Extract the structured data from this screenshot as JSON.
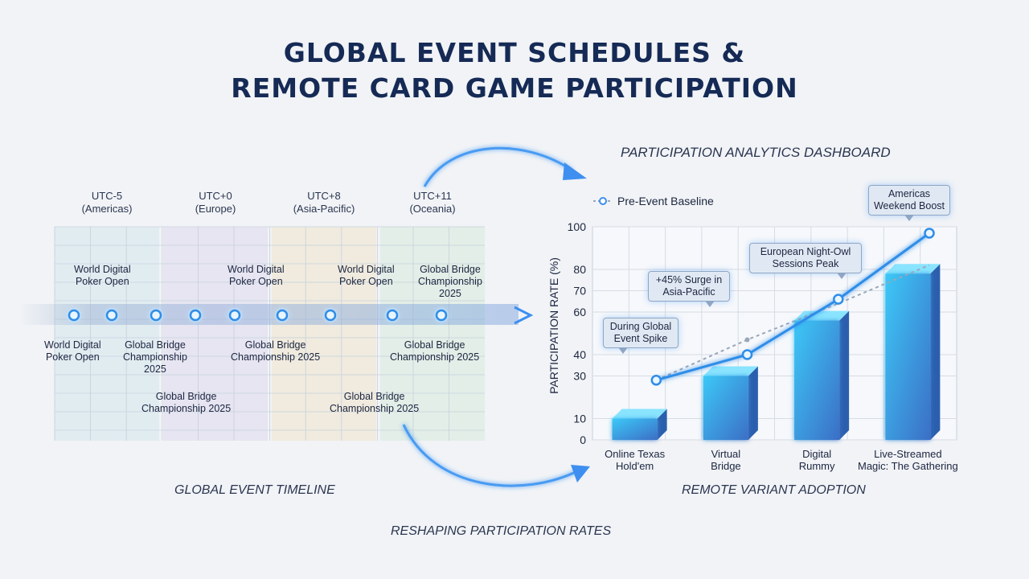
{
  "title": {
    "line1": "GLOBAL EVENT SCHEDULES &",
    "line2": "REMOTE CARD GAME PARTICIPATION"
  },
  "captions": {
    "dashboard": "PARTICIPATION ANALYTICS DASHBOARD",
    "timeline": "GLOBAL EVENT TIMELINE",
    "adoption": "REMOTE VARIANT ADOPTION",
    "bottom": "RESHAPING PARTICIPATION RATES"
  },
  "timezones": [
    {
      "label": "UTC-5",
      "region": "(Americas)",
      "color": "#dbe9ef"
    },
    {
      "label": "UTC+0",
      "region": "(Europe)",
      "color": "#e2e0ef"
    },
    {
      "label": "UTC+8",
      "region": "(Asia-Pacific)",
      "color": "#efe8d6"
    },
    {
      "label": "UTC+11",
      "region": "(Oceania)",
      "color": "#dcece1"
    }
  ],
  "timeline_events": {
    "above": [
      {
        "l1": "World Digital",
        "l2": "Poker Open",
        "l3": ""
      },
      {
        "l1": "World Digital",
        "l2": "Poker Open",
        "l3": ""
      },
      {
        "l1": "World Digital",
        "l2": "Poker Open",
        "l3": ""
      },
      {
        "l1": "Global Bridge",
        "l2": "Championship",
        "l3": "2025"
      }
    ],
    "below": [
      {
        "l1": "World Digital",
        "l2": "Poker Open",
        "l3": ""
      },
      {
        "l1": "Global Bridge",
        "l2": "Championship",
        "l3": "2025"
      },
      {
        "l1": "Global Bridge",
        "l2": "Championship 2025",
        "l3": ""
      },
      {
        "l1": "Global Bridge",
        "l2": "Championship 2025",
        "l3": ""
      }
    ],
    "bottom": [
      {
        "l1": "Global Bridge",
        "l2": "Championship 2025"
      },
      {
        "l1": "Global Bridge",
        "l2": "Championship 2025"
      }
    ]
  },
  "chart_data": {
    "type": "bar",
    "title": "",
    "ylabel": "PARTICIPATION RATE (%)",
    "xlabel": "",
    "ylim": [
      0,
      100
    ],
    "yticks": [
      0,
      10,
      30,
      40,
      60,
      70,
      80,
      100
    ],
    "categories": [
      "Online Texas Hold'em",
      "Virtual Bridge",
      "Digital Rummy",
      "Live-Streamed Magic: The Gathering"
    ],
    "category_lines": [
      [
        "Online Texas",
        "Hold'em"
      ],
      [
        "Virtual",
        "Bridge"
      ],
      [
        "Digital",
        "Rummy"
      ],
      [
        "Live-Streamed",
        "Magic: The Gathering"
      ]
    ],
    "bars": [
      10,
      30,
      56,
      78
    ],
    "line_points": [
      {
        "x": 0.2,
        "y": 28
      },
      {
        "x": 1.2,
        "y": 40
      },
      {
        "x": 2.2,
        "y": 66
      },
      {
        "x": 3.2,
        "y": 97
      }
    ],
    "baseline_points": [
      {
        "x": 0.2,
        "y": 28
      },
      {
        "x": 1.2,
        "y": 47
      },
      {
        "x": 2.2,
        "y": 64
      },
      {
        "x": 3.2,
        "y": 82
      }
    ],
    "legend": {
      "baseline": "Pre-Event Baseline"
    },
    "annotations": [
      {
        "l1": "During Global",
        "l2": "Event Spike"
      },
      {
        "l1": "+45% Surge in",
        "l2": "Asia-Pacific"
      },
      {
        "l1": "European Night-Owl",
        "l2": "Sessions Peak"
      },
      {
        "l1": "Americas",
        "l2": "Weekend Boost"
      }
    ],
    "colors": {
      "bar": "#2aa8f0",
      "line": "#2f8de8",
      "baseline": "#9aa7ba"
    }
  }
}
